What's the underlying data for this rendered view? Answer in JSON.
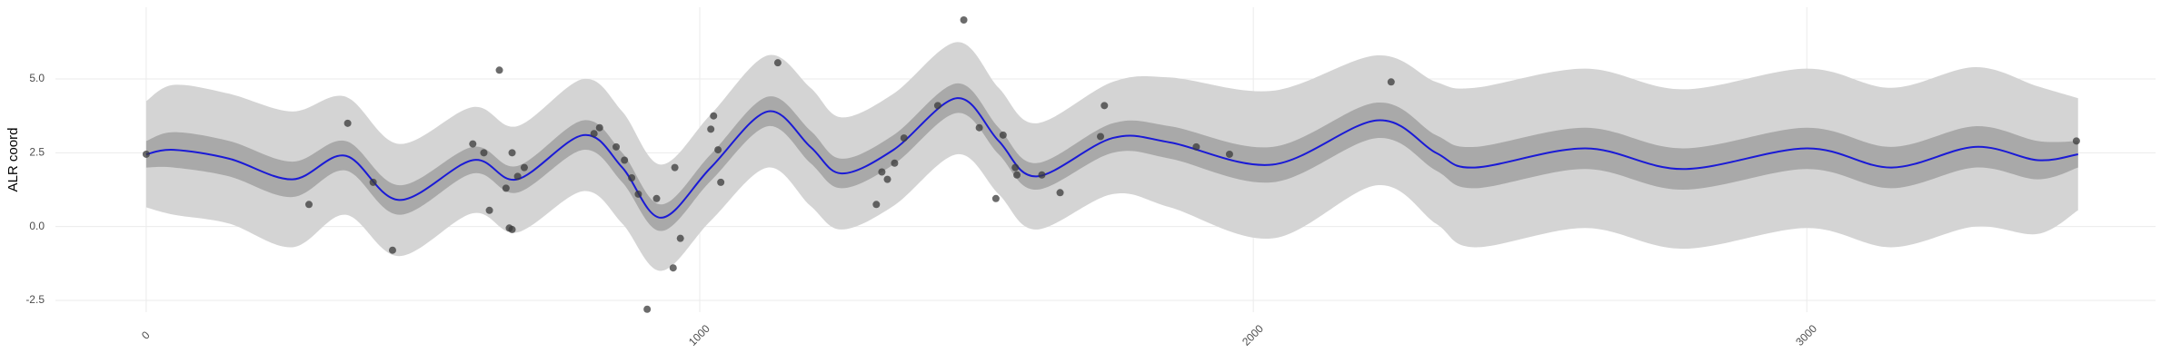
{
  "chart_data": {
    "type": "line",
    "y_label": "ALR coord",
    "x": [
      0,
      50,
      150,
      264,
      360,
      457,
      590,
      670,
      790,
      860,
      930,
      1020,
      1123,
      1200,
      1256,
      1350,
      1465,
      1540,
      1608,
      1746,
      1850,
      2035,
      2224,
      2330,
      2400,
      2600,
      2776,
      3000,
      3153,
      3304,
      3417,
      3490
    ],
    "ribbons": [
      {
        "color": "#d4d4d4",
        "lower": [
          0.65,
          0.4,
          0.1,
          -0.7,
          0.4,
          -1.0,
          0.45,
          -0.2,
          1.2,
          0.1,
          -1.5,
          0.2,
          2.0,
          0.7,
          -0.1,
          0.7,
          2.45,
          1.1,
          -0.1,
          1.1,
          0.65,
          -0.4,
          1.4,
          0.1,
          -0.7,
          -0.05,
          -0.75,
          -0.05,
          -0.7,
          0.0,
          -0.25,
          0.55
        ],
        "upper": [
          4.25,
          4.8,
          4.5,
          3.9,
          4.4,
          2.8,
          4.05,
          3.4,
          5.0,
          3.9,
          2.1,
          3.8,
          5.8,
          4.7,
          3.7,
          4.5,
          6.25,
          4.7,
          3.5,
          4.9,
          5.05,
          4.6,
          5.8,
          4.9,
          4.7,
          5.35,
          4.65,
          5.35,
          4.7,
          5.4,
          4.75,
          4.35
        ]
      },
      {
        "color": "#a9a9a9",
        "lower": [
          2.0,
          2.0,
          1.7,
          1.0,
          1.9,
          0.4,
          1.8,
          1.15,
          2.6,
          1.5,
          -0.15,
          1.55,
          3.4,
          2.15,
          1.3,
          2.1,
          3.85,
          2.45,
          1.25,
          2.5,
          2.3,
          1.5,
          3.0,
          1.9,
          1.3,
          1.95,
          1.25,
          1.95,
          1.3,
          2.0,
          1.6,
          2.0
        ],
        "upper": [
          2.9,
          3.2,
          2.9,
          2.2,
          2.9,
          1.4,
          2.7,
          2.05,
          3.6,
          2.5,
          0.75,
          2.45,
          4.4,
          3.25,
          2.3,
          3.1,
          4.85,
          3.35,
          2.15,
          3.5,
          3.4,
          2.7,
          4.2,
          3.1,
          2.7,
          3.35,
          2.65,
          3.35,
          2.7,
          3.4,
          2.9,
          2.9
        ]
      }
    ],
    "line": {
      "color": "#1a1ad6",
      "values": [
        2.45,
        2.6,
        2.3,
        1.6,
        2.4,
        0.9,
        2.25,
        1.6,
        3.1,
        2.0,
        0.3,
        2.0,
        3.9,
        2.7,
        1.8,
        2.6,
        4.35,
        2.9,
        1.7,
        3.0,
        2.85,
        2.1,
        3.6,
        2.5,
        2.0,
        2.65,
        1.95,
        2.65,
        2.0,
        2.7,
        2.25,
        2.45
      ]
    },
    "points": {
      "color": "#3a3a3a",
      "x": [
        0,
        294,
        364,
        410,
        445,
        590,
        610,
        620,
        638,
        650,
        656,
        661,
        661,
        671,
        683,
        809,
        819,
        849,
        864,
        877,
        889,
        905,
        922,
        952,
        955,
        965,
        1020,
        1025,
        1033,
        1038,
        1141,
        1319,
        1329,
        1339,
        1352,
        1369,
        1430,
        1477,
        1505,
        1535,
        1548,
        1570,
        1573,
        1618,
        1651,
        1724,
        1731,
        1897,
        1957,
        2249,
        3487
      ],
      "y": [
        2.45,
        0.75,
        3.5,
        1.5,
        -0.8,
        2.8,
        2.5,
        0.55,
        5.3,
        1.3,
        -0.05,
        -0.1,
        2.5,
        1.7,
        2.0,
        3.15,
        3.35,
        2.7,
        2.25,
        1.65,
        1.1,
        -2.8,
        0.95,
        -1.4,
        2.0,
        -0.4,
        3.3,
        3.75,
        2.6,
        1.5,
        5.55,
        0.75,
        1.85,
        1.6,
        2.15,
        3.0,
        4.1,
        7.0,
        3.35,
        0.95,
        3.1,
        2.0,
        1.75,
        1.75,
        1.15,
        3.05,
        4.1,
        2.7,
        2.45,
        4.9,
        2.9
      ]
    },
    "xlim": [
      -164,
      3630
    ],
    "ylim": [
      -2.9,
      7.43
    ],
    "xticks": [
      0,
      1000,
      2000,
      3000
    ],
    "yticks": [
      {
        "value": -2.5,
        "label": "-2.5"
      },
      {
        "value": 0,
        "label": "0.0"
      },
      {
        "value": 2.5,
        "label": "2.5"
      },
      {
        "value": 5,
        "label": "5.0"
      }
    ],
    "grid": true
  }
}
